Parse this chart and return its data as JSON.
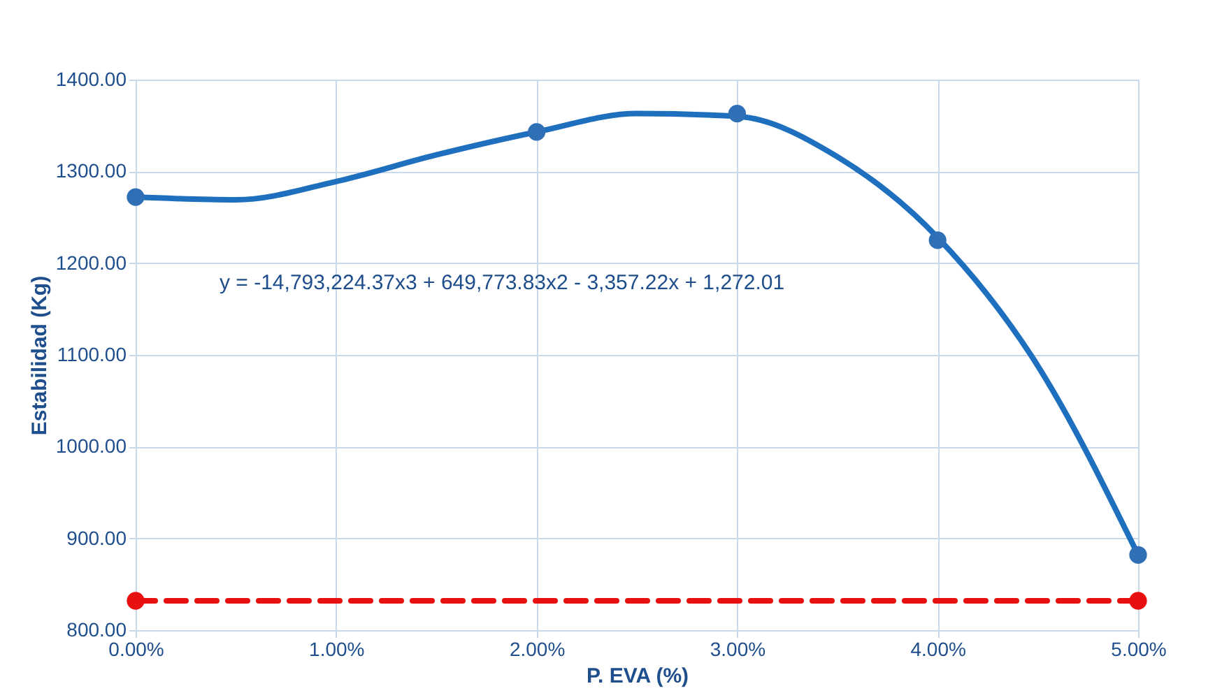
{
  "chart_data": {
    "type": "scatter",
    "xlabel": "P. EVA (%)",
    "ylabel": "Estabilidad (Kg)",
    "xlim": [
      0,
      0.05
    ],
    "ylim": [
      800,
      1400
    ],
    "xticks": [
      {
        "value": 0,
        "label": "0.00%"
      },
      {
        "value": 0.01,
        "label": "1.00%"
      },
      {
        "value": 0.02,
        "label": "2.00%"
      },
      {
        "value": 0.03,
        "label": "3.00%"
      },
      {
        "value": 0.04,
        "label": "4.00%"
      },
      {
        "value": 0.05,
        "label": "5.00%"
      }
    ],
    "yticks": [
      {
        "value": 800,
        "label": "800.00"
      },
      {
        "value": 900,
        "label": "900.00"
      },
      {
        "value": 1000,
        "label": "1000.00"
      },
      {
        "value": 1100,
        "label": "1100.00"
      },
      {
        "value": 1200,
        "label": "1200.00"
      },
      {
        "value": 1300,
        "label": "1300.00"
      },
      {
        "value": 1400,
        "label": "1400.00"
      }
    ],
    "grid": true,
    "series": [
      {
        "type": "line",
        "color": "#1f6fbf",
        "marker": "none",
        "line_style": "solid",
        "x": [
          0,
          0.005,
          0.01,
          0.015,
          0.02,
          0.025,
          0.03,
          0.035,
          0.04,
          0.045,
          0.05
        ],
        "values": [
          1272,
          1269,
          1289,
          1318,
          1343,
          1363,
          1360,
          1316,
          1228,
          1088,
          882
        ]
      },
      {
        "color": "#2e6fb5",
        "marker": "circle",
        "x": [
          0,
          0.02,
          0.03,
          0.04,
          0.05
        ],
        "values": [
          1272,
          1343,
          1363,
          1225,
          882
        ]
      },
      {
        "type": "line",
        "color": "#e8110f",
        "marker": "circle",
        "line_style": "dashed",
        "x": [
          0,
          0.05
        ],
        "values": [
          832,
          832
        ]
      }
    ],
    "annotations": [
      "y = -14,793,224.37x3 + 649,773.83x2 - 3,357.22x + 1,272.01"
    ]
  }
}
